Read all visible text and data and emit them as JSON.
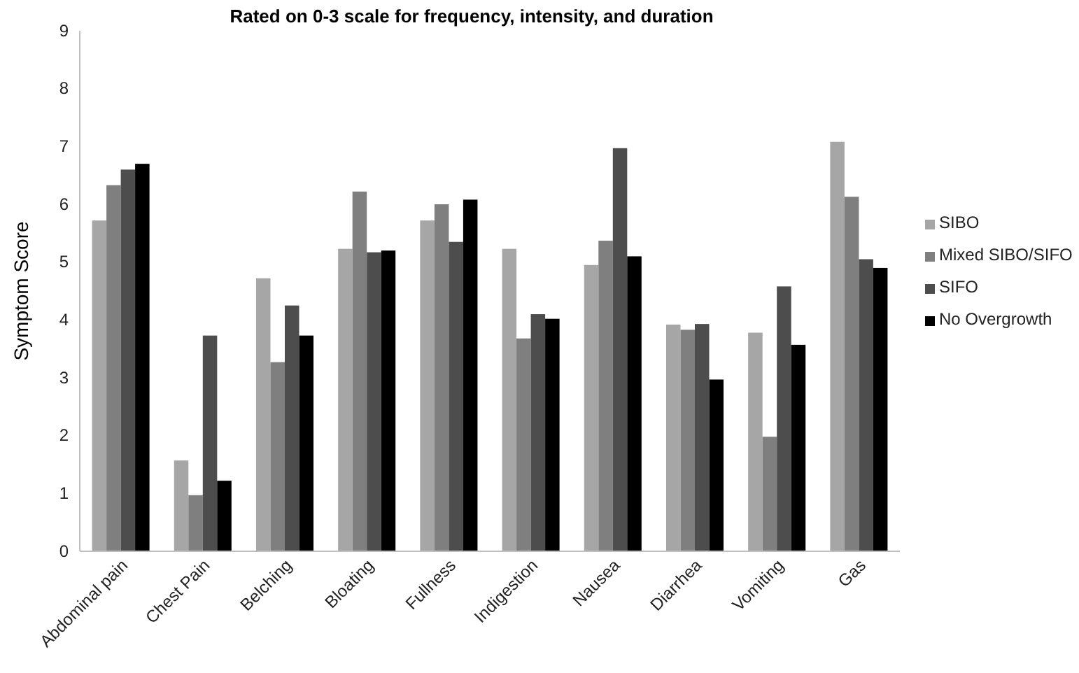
{
  "chart_data": {
    "type": "bar",
    "title": "Rated on 0-3 scale for frequency, intensity, and duration",
    "ylabel": "Symptom Score",
    "categories": [
      "Abdominal pain",
      "Chest Pain",
      "Belching",
      "Bloating",
      "Fullness",
      "Indigestion",
      "Nausea",
      "Diarrhea",
      "Vomiting",
      "Gas"
    ],
    "series": [
      {
        "name": "SIBO",
        "color": "#a6a6a6",
        "values": [
          5.72,
          1.57,
          4.72,
          5.23,
          5.72,
          5.23,
          4.95,
          3.92,
          3.78,
          7.08
        ]
      },
      {
        "name": "Mixed SIBO/SIFO",
        "color": "#7f7f7f",
        "values": [
          6.33,
          0.97,
          3.27,
          6.22,
          6.0,
          3.68,
          5.37,
          3.83,
          1.98,
          6.13
        ]
      },
      {
        "name": "SIFO",
        "color": "#4d4d4d",
        "values": [
          6.6,
          3.73,
          4.25,
          5.17,
          5.35,
          4.1,
          6.97,
          3.93,
          4.58,
          5.05
        ]
      },
      {
        "name": "No Overgrowth",
        "color": "#000000",
        "values": [
          6.7,
          1.22,
          3.73,
          5.2,
          6.08,
          4.02,
          5.1,
          2.97,
          3.57,
          4.9
        ]
      }
    ],
    "ylim": [
      0,
      9
    ],
    "yticks": [
      0,
      1,
      2,
      3,
      4,
      5,
      6,
      7,
      8,
      9
    ],
    "grid": false,
    "legend": "right"
  }
}
